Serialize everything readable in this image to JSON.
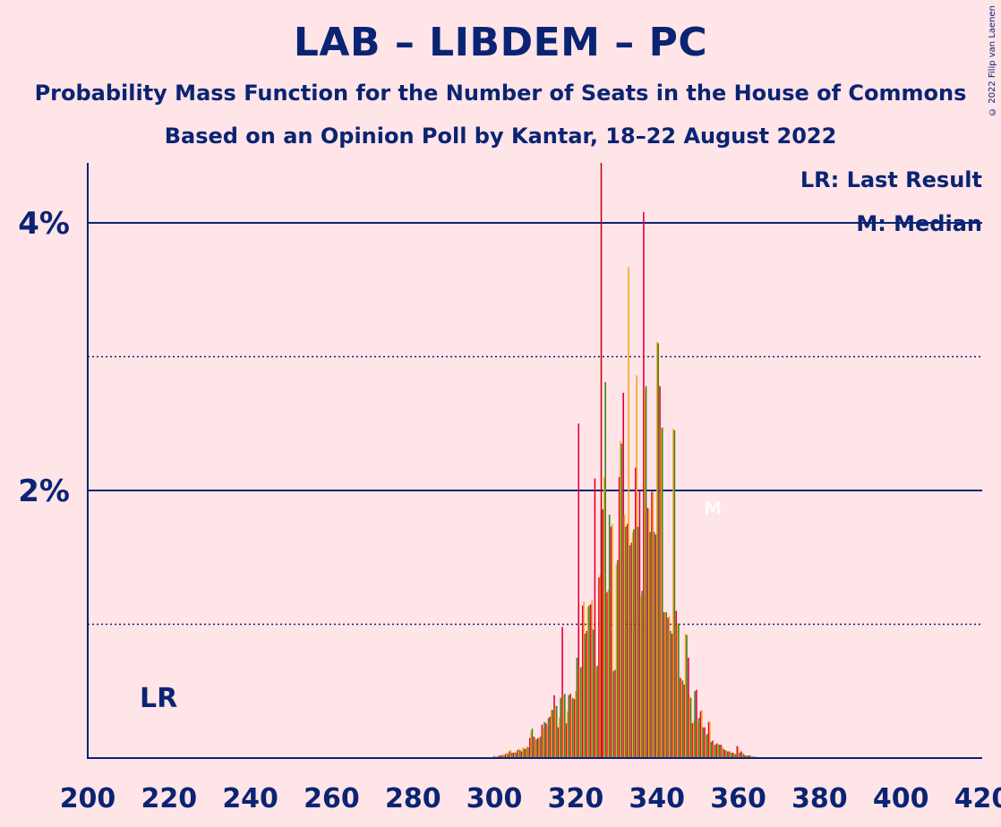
{
  "title": "LAB – LIBDEM – PC",
  "subtitle1": "Probability Mass Function for the Number of Seats in the House of Commons",
  "subtitle2": "Based on an Opinion Poll by Kantar, 18–22 August 2022",
  "copyright": "© 2022 Filip van Laenen",
  "legend": {
    "last_result": "LR: Last Result",
    "median": "M: Median"
  },
  "lr_label": "LR",
  "median_marker": "M",
  "colors": {
    "background": "#FFE4E8",
    "text": "#0A2473",
    "lab": "#E4003B",
    "libdem": "#FAA61A",
    "pc": "#3F8428",
    "lr_line": "#C00000"
  },
  "chart_data": {
    "type": "bar",
    "xlim": [
      200,
      420
    ],
    "ylim": [
      0,
      4.5
    ],
    "xticks": [
      200,
      220,
      240,
      260,
      280,
      300,
      320,
      340,
      360,
      380,
      400,
      420
    ],
    "yticks": [
      {
        "value": 2,
        "label": "2%"
      },
      {
        "value": 4,
        "label": "4%"
      }
    ],
    "minor_gridlines": [
      1,
      3
    ],
    "last_result": 326,
    "median": 352,
    "series_order": [
      "LAB",
      "LIBDEM",
      "PC"
    ],
    "points": [
      {
        "x": 300,
        "v": [
          0.01,
          0.02,
          0.01
        ]
      },
      {
        "x": 301,
        "v": [
          0.01,
          0.02,
          0.02
        ]
      },
      {
        "x": 302,
        "v": [
          0.02,
          0.03,
          0.02
        ]
      },
      {
        "x": 303,
        "v": [
          0.03,
          0.04,
          0.03
        ]
      },
      {
        "x": 304,
        "v": [
          0.05,
          0.06,
          0.04
        ]
      },
      {
        "x": 305,
        "v": [
          0.04,
          0.05,
          0.04
        ]
      },
      {
        "x": 306,
        "v": [
          0.06,
          0.07,
          0.06
        ]
      },
      {
        "x": 307,
        "v": [
          0.05,
          0.08,
          0.07
        ]
      },
      {
        "x": 308,
        "v": [
          0.07,
          0.09,
          0.08
        ]
      },
      {
        "x": 309,
        "v": [
          0.15,
          0.2,
          0.22
        ]
      },
      {
        "x": 310,
        "v": [
          0.16,
          0.15,
          0.14
        ]
      },
      {
        "x": 311,
        "v": [
          0.15,
          0.14,
          0.16
        ]
      },
      {
        "x": 312,
        "v": [
          0.25,
          0.22,
          0.27
        ]
      },
      {
        "x": 313,
        "v": [
          0.26,
          0.24,
          0.3
        ]
      },
      {
        "x": 314,
        "v": [
          0.31,
          0.36,
          0.36
        ]
      },
      {
        "x": 315,
        "v": [
          0.47,
          0.39,
          0.39
        ]
      },
      {
        "x": 316,
        "v": [
          0.23,
          0.3,
          0.45
        ]
      },
      {
        "x": 317,
        "v": [
          0.98,
          0.47,
          0.48
        ]
      },
      {
        "x": 318,
        "v": [
          0.26,
          0.35,
          0.47
        ]
      },
      {
        "x": 319,
        "v": [
          0.48,
          0.44,
          0.45
        ]
      },
      {
        "x": 320,
        "v": [
          0.44,
          0.5,
          0.75
        ]
      },
      {
        "x": 321,
        "v": [
          2.5,
          0.67,
          0.68
        ]
      },
      {
        "x": 322,
        "v": [
          1.14,
          1.17,
          0.93
        ]
      },
      {
        "x": 323,
        "v": [
          0.95,
          1.13,
          1.14
        ]
      },
      {
        "x": 324,
        "v": [
          1.15,
          1.18,
          0.96
        ]
      },
      {
        "x": 325,
        "v": [
          2.09,
          0.68,
          0.69
        ]
      },
      {
        "x": 326,
        "v": [
          1.35,
          1.37,
          1.85
        ]
      },
      {
        "x": 327,
        "v": [
          1.86,
          2.1,
          2.81
        ]
      },
      {
        "x": 328,
        "v": [
          1.24,
          1.26,
          1.82
        ]
      },
      {
        "x": 329,
        "v": [
          1.73,
          1.75,
          0.65
        ]
      },
      {
        "x": 330,
        "v": [
          0.66,
          1.45,
          1.48
        ]
      },
      {
        "x": 331,
        "v": [
          2.1,
          2.37,
          2.35
        ]
      },
      {
        "x": 332,
        "v": [
          2.73,
          1.82,
          1.73
        ]
      },
      {
        "x": 333,
        "v": [
          1.75,
          3.67,
          1.59
        ]
      },
      {
        "x": 334,
        "v": [
          1.61,
          1.69,
          1.71
        ]
      },
      {
        "x": 335,
        "v": [
          2.17,
          2.86,
          1.73
        ]
      },
      {
        "x": 336,
        "v": [
          2.0,
          1.21,
          1.25
        ]
      },
      {
        "x": 337,
        "v": [
          4.08,
          2.76,
          2.78
        ]
      },
      {
        "x": 338,
        "v": [
          1.87,
          1.86,
          1.69
        ]
      },
      {
        "x": 339,
        "v": [
          1.99,
          1.99,
          1.69
        ]
      },
      {
        "x": 340,
        "v": [
          1.67,
          3.11,
          3.1
        ]
      },
      {
        "x": 341,
        "v": [
          2.78,
          2.47,
          2.47
        ]
      },
      {
        "x": 342,
        "v": [
          1.09,
          1.09,
          1.09
        ]
      },
      {
        "x": 343,
        "v": [
          1.05,
          1.06,
          0.95
        ]
      },
      {
        "x": 344,
        "v": [
          0.93,
          2.46,
          2.45
        ]
      },
      {
        "x": 345,
        "v": [
          1.1,
          1.01,
          1.0
        ]
      },
      {
        "x": 346,
        "v": [
          0.6,
          0.59,
          0.58
        ]
      },
      {
        "x": 347,
        "v": [
          0.55,
          0.93,
          0.92
        ]
      },
      {
        "x": 348,
        "v": [
          0.75,
          0.47,
          0.45
        ]
      },
      {
        "x": 349,
        "v": [
          0.26,
          0.27,
          0.5
        ]
      },
      {
        "x": 350,
        "v": [
          0.51,
          0.27,
          0.3
        ]
      },
      {
        "x": 351,
        "v": [
          0.35,
          0.36,
          0.23
        ]
      },
      {
        "x": 352,
        "v": [
          0.23,
          0.17,
          0.18
        ]
      },
      {
        "x": 353,
        "v": [
          0.27,
          0.27,
          0.12
        ]
      },
      {
        "x": 354,
        "v": [
          0.13,
          0.1,
          0.1
        ]
      },
      {
        "x": 355,
        "v": [
          0.11,
          0.11,
          0.1
        ]
      },
      {
        "x": 356,
        "v": [
          0.1,
          0.09,
          0.07
        ]
      },
      {
        "x": 357,
        "v": [
          0.06,
          0.06,
          0.05
        ]
      },
      {
        "x": 358,
        "v": [
          0.05,
          0.05,
          0.04
        ]
      },
      {
        "x": 359,
        "v": [
          0.04,
          0.03,
          0.03
        ]
      },
      {
        "x": 360,
        "v": [
          0.09,
          0.08,
          0.04
        ]
      },
      {
        "x": 361,
        "v": [
          0.05,
          0.04,
          0.03
        ]
      },
      {
        "x": 362,
        "v": [
          0.02,
          0.02,
          0.02
        ]
      },
      {
        "x": 363,
        "v": [
          0.02,
          0.02,
          0.01
        ]
      },
      {
        "x": 364,
        "v": [
          0.01,
          0.01,
          0.01
        ]
      }
    ]
  }
}
